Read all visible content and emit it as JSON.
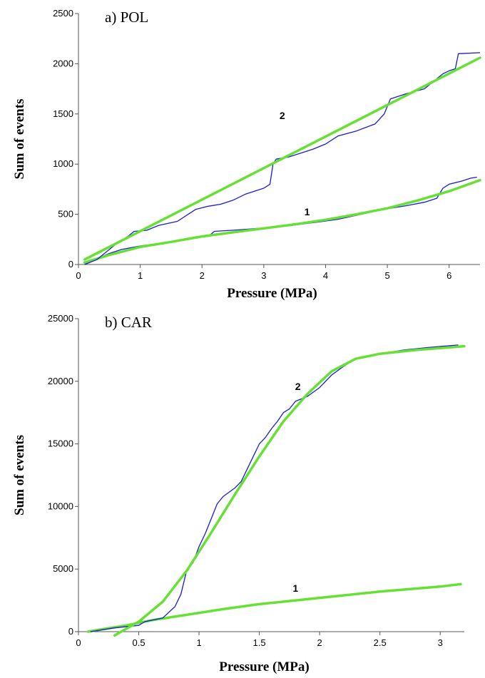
{
  "chart_data": [
    {
      "type": "line",
      "panel_label": "a) POL",
      "xlabel": "Pressure (MPa)",
      "ylabel": "Sum of events",
      "xlim": [
        0,
        6.5
      ],
      "ylim": [
        0,
        2500
      ],
      "xticks": [
        0,
        1,
        2,
        3,
        4,
        5,
        6
      ],
      "yticks": [
        0,
        500,
        1000,
        1500,
        2000,
        2500
      ],
      "grid": false,
      "series": [
        {
          "label": "1",
          "label_at": [
            3.7,
            490
          ],
          "raw_color": "#1a1adc",
          "fit_color": "#66e033",
          "raw": [
            [
              0.1,
              0
            ],
            [
              0.3,
              60
            ],
            [
              0.5,
              110
            ],
            [
              0.7,
              150
            ],
            [
              1.0,
              185
            ],
            [
              1.3,
              210
            ],
            [
              1.6,
              240
            ],
            [
              1.9,
              265
            ],
            [
              2.0,
              275
            ],
            [
              2.1,
              280
            ],
            [
              2.2,
              330
            ],
            [
              2.6,
              345
            ],
            [
              3.0,
              365
            ],
            [
              3.4,
              385
            ],
            [
              3.7,
              410
            ],
            [
              3.9,
              425
            ],
            [
              4.2,
              450
            ],
            [
              4.5,
              490
            ],
            [
              4.8,
              530
            ],
            [
              5.0,
              555
            ],
            [
              5.3,
              585
            ],
            [
              5.6,
              620
            ],
            [
              5.8,
              660
            ],
            [
              5.9,
              760
            ],
            [
              6.0,
              800
            ],
            [
              6.2,
              830
            ],
            [
              6.35,
              860
            ],
            [
              6.45,
              870
            ]
          ],
          "fit": [
            [
              0.1,
              20
            ],
            [
              0.5,
              95
            ],
            [
              1.0,
              175
            ],
            [
              1.5,
              225
            ],
            [
              2.0,
              280
            ],
            [
              2.5,
              320
            ],
            [
              3.0,
              360
            ],
            [
              3.5,
              400
            ],
            [
              4.0,
              445
            ],
            [
              4.5,
              500
            ],
            [
              5.0,
              560
            ],
            [
              5.5,
              640
            ],
            [
              6.0,
              730
            ],
            [
              6.5,
              840
            ]
          ]
        },
        {
          "label": "2",
          "label_at": [
            3.3,
            1450
          ],
          "raw_color": "#1a1adc",
          "fit_color": "#66e033",
          "raw": [
            [
              0.1,
              0
            ],
            [
              0.3,
              50
            ],
            [
              0.6,
              200
            ],
            [
              0.8,
              280
            ],
            [
              0.9,
              330
            ],
            [
              1.1,
              340
            ],
            [
              1.3,
              390
            ],
            [
              1.6,
              430
            ],
            [
              1.9,
              550
            ],
            [
              2.1,
              580
            ],
            [
              2.3,
              600
            ],
            [
              2.5,
              640
            ],
            [
              2.7,
              700
            ],
            [
              3.0,
              760
            ],
            [
              3.1,
              800
            ],
            [
              3.15,
              1000
            ],
            [
              3.2,
              1050
            ],
            [
              3.4,
              1070
            ],
            [
              3.6,
              1110
            ],
            [
              3.8,
              1150
            ],
            [
              4.0,
              1200
            ],
            [
              4.2,
              1280
            ],
            [
              4.5,
              1330
            ],
            [
              4.8,
              1400
            ],
            [
              4.95,
              1500
            ],
            [
              5.05,
              1650
            ],
            [
              5.3,
              1700
            ],
            [
              5.6,
              1750
            ],
            [
              5.9,
              1900
            ],
            [
              6.0,
              1930
            ],
            [
              6.1,
              1950
            ],
            [
              6.15,
              2100
            ],
            [
              6.5,
              2110
            ]
          ],
          "fit": [
            [
              0.1,
              50
            ],
            [
              6.5,
              2060
            ]
          ]
        }
      ]
    },
    {
      "type": "line",
      "panel_label": "b) CAR",
      "xlabel": "Pressure (MPa)",
      "ylabel": "Sum of events",
      "xlim": [
        0,
        3.2
      ],
      "ylim": [
        0,
        25000
      ],
      "xticks": [
        0,
        0.5,
        1,
        1.5,
        2,
        2.5,
        3
      ],
      "yticks": [
        0,
        5000,
        10000,
        15000,
        20000,
        25000
      ],
      "grid": false,
      "series": [
        {
          "label": "1",
          "label_at": [
            1.8,
            3200
          ],
          "raw_color": "#1a1adc",
          "fit_color": "#66e033",
          "raw": [
            [
              0.08,
              0
            ],
            [
              0.2,
              200
            ],
            [
              0.4,
              500
            ],
            [
              0.6,
              900
            ],
            [
              0.8,
              1200
            ],
            [
              1.0,
              1500
            ],
            [
              1.2,
              1800
            ],
            [
              1.5,
              2200
            ],
            [
              2.0,
              2700
            ],
            [
              2.5,
              3200
            ],
            [
              3.0,
              3600
            ],
            [
              3.15,
              3800
            ]
          ],
          "fit": [
            [
              0.08,
              0
            ],
            [
              0.2,
              200
            ],
            [
              0.4,
              500
            ],
            [
              0.6,
              900
            ],
            [
              0.8,
              1200
            ],
            [
              1.0,
              1500
            ],
            [
              1.2,
              1800
            ],
            [
              1.5,
              2200
            ],
            [
              2.0,
              2700
            ],
            [
              2.5,
              3200
            ],
            [
              3.0,
              3600
            ],
            [
              3.17,
              3800
            ]
          ]
        },
        {
          "label": "2",
          "label_at": [
            1.82,
            19300
          ],
          "raw_color": "#1a1adc",
          "fit_color": "#66e033",
          "raw": [
            [
              0.1,
              0
            ],
            [
              0.3,
              300
            ],
            [
              0.5,
              500
            ],
            [
              0.55,
              800
            ],
            [
              0.7,
              1100
            ],
            [
              0.8,
              2000
            ],
            [
              0.85,
              3000
            ],
            [
              0.9,
              5000
            ],
            [
              0.95,
              5500
            ],
            [
              1.0,
              6800
            ],
            [
              1.05,
              7800
            ],
            [
              1.1,
              9000
            ],
            [
              1.15,
              10200
            ],
            [
              1.2,
              10800
            ],
            [
              1.3,
              11500
            ],
            [
              1.35,
              12000
            ],
            [
              1.4,
              13000
            ],
            [
              1.45,
              14000
            ],
            [
              1.5,
              15000
            ],
            [
              1.55,
              15500
            ],
            [
              1.6,
              16200
            ],
            [
              1.65,
              16800
            ],
            [
              1.7,
              17500
            ],
            [
              1.75,
              17800
            ],
            [
              1.8,
              18400
            ],
            [
              1.9,
              18800
            ],
            [
              2.0,
              19500
            ],
            [
              2.1,
              20500
            ],
            [
              2.2,
              21200
            ],
            [
              2.3,
              21800
            ],
            [
              2.5,
              22200
            ],
            [
              2.7,
              22500
            ],
            [
              2.9,
              22700
            ],
            [
              3.15,
              22900
            ]
          ],
          "fit": [
            [
              0.3,
              -300
            ],
            [
              0.5,
              800
            ],
            [
              0.7,
              2400
            ],
            [
              0.9,
              4900
            ],
            [
              1.1,
              7900
            ],
            [
              1.3,
              11000
            ],
            [
              1.5,
              14000
            ],
            [
              1.7,
              16800
            ],
            [
              1.9,
              19000
            ],
            [
              2.1,
              20800
            ],
            [
              2.3,
              21800
            ],
            [
              2.5,
              22200
            ],
            [
              2.8,
              22500
            ],
            [
              3.0,
              22650
            ],
            [
              3.2,
              22800
            ]
          ]
        }
      ]
    }
  ]
}
